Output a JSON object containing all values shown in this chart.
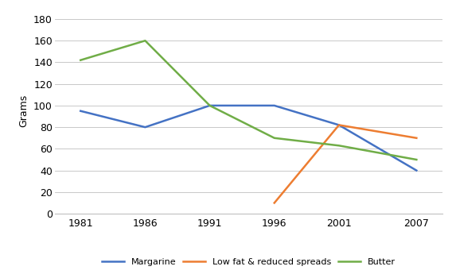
{
  "years": [
    1981,
    1986,
    1991,
    1996,
    2001,
    2007
  ],
  "margarine": [
    95,
    80,
    100,
    100,
    82,
    40
  ],
  "low_fat": [
    null,
    null,
    null,
    10,
    82,
    70
  ],
  "butter": [
    142,
    160,
    100,
    70,
    63,
    50
  ],
  "margarine_color": "#4472C4",
  "low_fat_color": "#ED7D31",
  "butter_color": "#70AD47",
  "ylabel": "Grams",
  "ylim": [
    0,
    190
  ],
  "yticks": [
    0,
    20,
    40,
    60,
    80,
    100,
    120,
    140,
    160,
    180
  ],
  "legend_labels": [
    "Margarine",
    "Low fat & reduced spreads",
    "Butter"
  ],
  "background_color": "#FFFFFF",
  "grid_color": "#BFBFBF"
}
